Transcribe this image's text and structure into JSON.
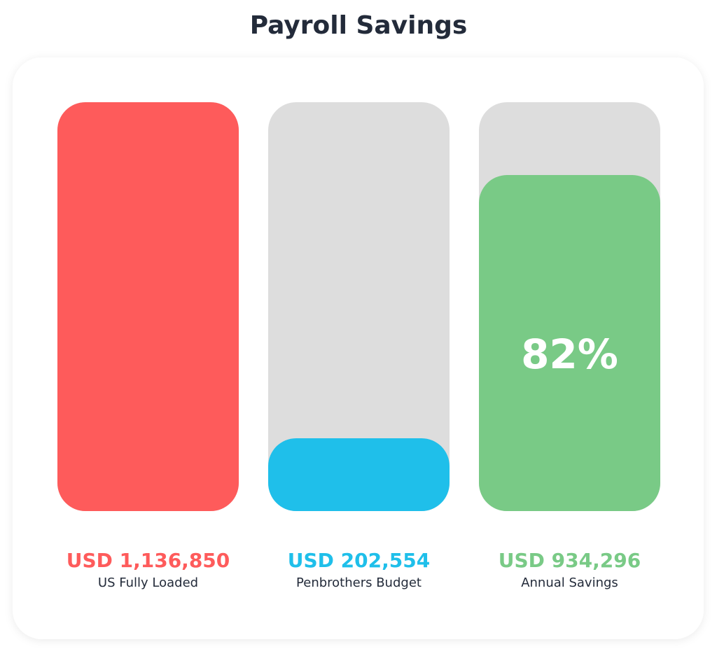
{
  "chart_data": {
    "type": "bar",
    "title": "Payroll Savings",
    "categories": [
      "US Fully Loaded",
      "Penbrothers Budget",
      "Annual Savings"
    ],
    "values": [
      1136850,
      202554,
      934296
    ],
    "value_labels": [
      "USD 1,136,850",
      "USD 202,554",
      "USD 934,296"
    ],
    "colors": [
      "#fe5b5b",
      "#1fbfea",
      "#79ca86"
    ],
    "track_color": "#dddddd",
    "annotation": "82%",
    "ylim": [
      0,
      1136850
    ]
  }
}
